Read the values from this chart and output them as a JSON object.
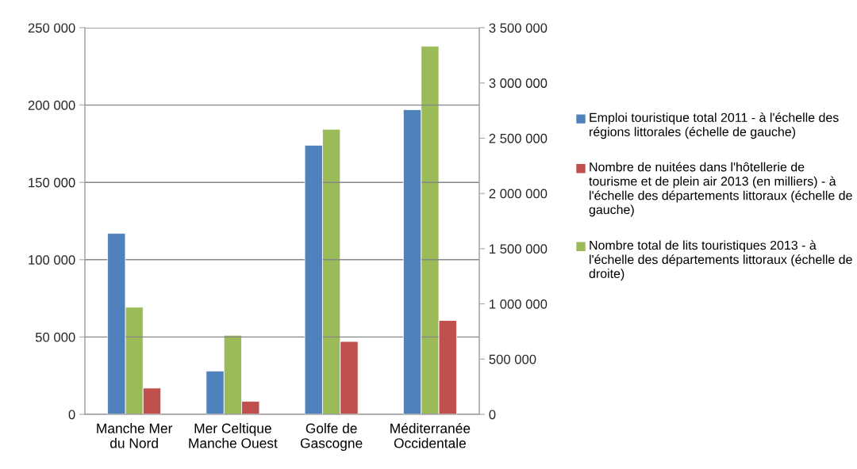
{
  "chart_data": {
    "type": "bar",
    "categories": [
      "Manche Mer\ndu Nord",
      "Mer Celtique\nManche Ouest",
      "Golfe de\nGascogne",
      "Méditerranée\nOccidentale"
    ],
    "series": [
      {
        "name": "Emploi touristique total 2011 - à l'échelle des régions littorales (échelle de gauche)",
        "color": "#4f81bd",
        "values": [
          117000,
          28000,
          174000,
          197000
        ]
      },
      {
        "name": "Nombre de nuitées dans l'hôtellerie de tourisme et de plein air 2013 (en milliers) - à l'échelle des départements littoraux (échelle de gauche)",
        "color": "#c0504d",
        "values": [
          17000,
          8400,
          47100,
          60700
        ]
      },
      {
        "name": "Nombre total de lits touristiques 2013 - à l'échelle des départements littoraux (échelle de droite)",
        "color": "#9bbb59",
        "values": [
          970000,
          716000,
          2581000,
          3333000
        ],
        "axis": "y2"
      }
    ],
    "ylim": [
      0,
      250000
    ],
    "yticks": [
      0,
      {
        "value": 50000,
        "label": "50 000"
      },
      {
        "value": 100000,
        "label": "100 000"
      },
      {
        "value": 150000,
        "label": "150 000"
      },
      {
        "value": 200000,
        "label": "200 000"
      },
      {
        "value": 250000,
        "label": "250 000"
      }
    ],
    "y2lim": [
      0,
      3500000
    ],
    "y2ticks": [
      0,
      {
        "value": 500000,
        "label": "500 000"
      },
      {
        "value": 1000000,
        "label": "1 000 000"
      },
      {
        "value": 1500000,
        "label": "1 500 000"
      },
      {
        "value": 2000000,
        "label": "2 000 000"
      },
      {
        "value": 2500000,
        "label": "2 500 000"
      },
      {
        "value": 3000000,
        "label": "3 000 000"
      },
      {
        "value": 3500000,
        "label": "3 500 000"
      }
    ],
    "grid": "y",
    "legend": "right"
  }
}
